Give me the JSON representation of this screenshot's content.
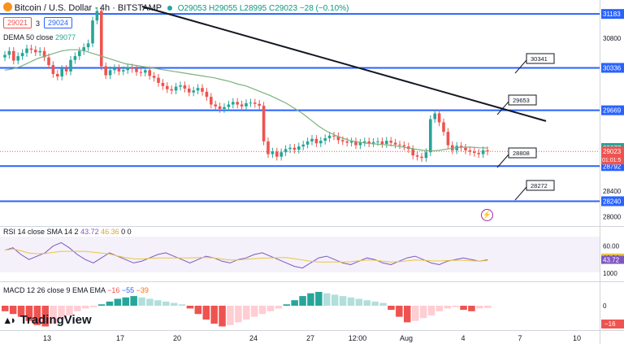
{
  "header": {
    "symbol": "Bitcoin / U.S. Dollar · 4h · BITSTAMP",
    "ohlc": "O29053 H29055 L28995 C29023 −28 (−0.10%)",
    "bid": "29021",
    "spread": "3",
    "ask": "29024",
    "dema_label": "DEMA 50 close",
    "dema_value": "29077"
  },
  "colors": {
    "up": "#26a69a",
    "down": "#ef5350",
    "level": "#2962ff",
    "trend": "#131722",
    "dema": "#7cb27c",
    "rsi": "#7e57c2",
    "rsi_ma": "#e8c547"
  },
  "price_axis": {
    "ticks": [
      "31183",
      "30800",
      "30336",
      "29669",
      "29077",
      "29023",
      "28792",
      "28400",
      "28240",
      "28000"
    ],
    "countdown": "01:01:5"
  },
  "levels": [
    {
      "price": 31183,
      "label": "31183"
    },
    {
      "price": 30336,
      "label": "30336"
    },
    {
      "price": 29669,
      "label": "29669"
    },
    {
      "price": 28792,
      "label": "28792"
    },
    {
      "price": 28240,
      "label": "28240"
    }
  ],
  "callouts": [
    "30341",
    "29653",
    "28808",
    "28272"
  ],
  "rsi": {
    "label": "RSI 14 close SMA 14 2",
    "value": "43.72",
    "ma_value": "46.36",
    "extra": "0 0",
    "ticks": [
      "60.00",
      "46.36",
      "43.72",
      "1000"
    ]
  },
  "macd": {
    "label": "MACD 12 26 close 9 EMA EMA",
    "hist": "−16",
    "macd": "−55",
    "signal": "−39",
    "ticks": [
      "0",
      "−16"
    ]
  },
  "x_axis": [
    "13",
    "17",
    "20",
    "24",
    "27",
    "12:00",
    "Aug",
    "4",
    "7",
    "10"
  ],
  "brand": "TradingView",
  "chart_data": {
    "type": "candlestick",
    "title": "Bitcoin / U.S. Dollar · 4h · BITSTAMP",
    "ylim": [
      27850,
      31300
    ],
    "closes": [
      30540,
      30600,
      30450,
      30520,
      30570,
      30640,
      30620,
      30580,
      30600,
      30500,
      30380,
      30240,
      30200,
      30320,
      30280,
      30460,
      30520,
      30600,
      30660,
      30720,
      31080,
      31230,
      30360,
      30220,
      30300,
      30330,
      30280,
      30300,
      30340,
      30320,
      30270,
      30260,
      30300,
      30210,
      30180,
      30100,
      30050,
      30000,
      29980,
      30040,
      30060,
      30010,
      29950,
      29980,
      30020,
      29960,
      29880,
      29760,
      29730,
      29690,
      29720,
      29760,
      29800,
      29760,
      29730,
      29780,
      29790,
      29770,
      29740,
      29180,
      28980,
      29020,
      28940,
      29010,
      29060,
      29080,
      29050,
      29100,
      29130,
      29180,
      29220,
      29150,
      29190,
      29230,
      29270,
      29260,
      29200,
      29180,
      29160,
      29180,
      29120,
      29160,
      29180,
      29150,
      29170,
      29180,
      29140,
      29190,
      29160,
      29130,
      29120,
      29100,
      29060,
      28960,
      28940,
      28920,
      29010,
      29530,
      29620,
      29480,
      29330,
      29120,
      29040,
      29110,
      29080,
      29040,
      29020,
      29000,
      28980,
      29040,
      29023
    ],
    "dema": [
      30300,
      30320,
      30360,
      30420,
      30480,
      30520,
      30560,
      30600,
      30620,
      30620,
      30600,
      30560,
      30520,
      30480,
      30440,
      30400,
      30380,
      30360,
      30340,
      30320,
      30300,
      30280,
      30260,
      30240,
      30220,
      30200,
      30180,
      30150,
      30120,
      30080,
      30050,
      30000,
      29950,
      29900,
      29840,
      29780,
      29700,
      29620,
      29520,
      29420,
      29340,
      29280,
      29230,
      29190,
      29170,
      29150,
      29140,
      29130,
      29120,
      29100,
      29080,
      29060,
      29040,
      29030,
      29040,
      29060,
      29080,
      29090,
      29090,
      29080,
      29077
    ],
    "rsi": [
      55,
      58,
      50,
      44,
      48,
      52,
      60,
      64,
      58,
      50,
      44,
      40,
      46,
      52,
      48,
      44,
      40,
      42,
      46,
      50,
      52,
      48,
      44,
      40,
      44,
      48,
      46,
      42,
      40,
      44,
      46,
      50,
      52,
      48,
      44,
      40,
      36,
      34,
      40,
      46,
      48,
      44,
      40,
      38,
      42,
      46,
      44,
      40,
      38,
      42,
      46,
      48,
      44,
      40,
      38,
      42,
      44,
      46,
      44,
      42,
      43.72
    ],
    "macd_hist": [
      -40,
      -60,
      -80,
      -110,
      -140,
      -150,
      -130,
      -100,
      -70,
      -40,
      -20,
      -10,
      10,
      30,
      50,
      60,
      70,
      60,
      50,
      40,
      30,
      20,
      10,
      -20,
      -60,
      -100,
      -130,
      -150,
      -140,
      -120,
      -100,
      -80,
      -60,
      -40,
      -20,
      10,
      40,
      70,
      90,
      100,
      90,
      80,
      70,
      60,
      50,
      40,
      30,
      20,
      -30,
      -80,
      -120,
      -110,
      -90,
      -70,
      -40,
      -20,
      -10,
      -30,
      -40,
      -20,
      -16
    ]
  }
}
